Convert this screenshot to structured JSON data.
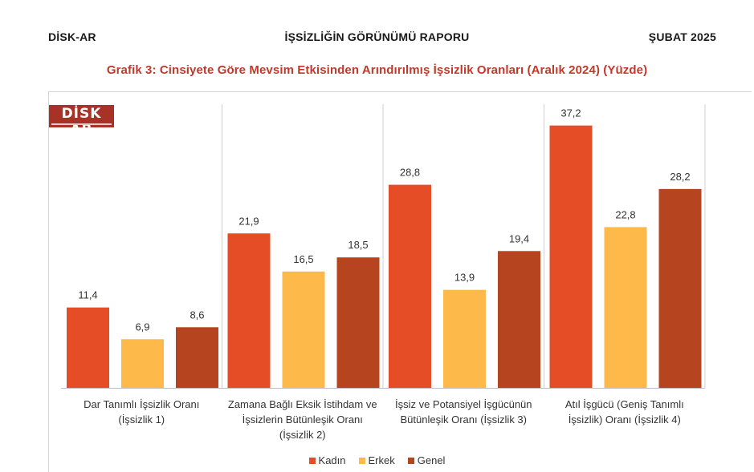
{
  "header": {
    "left": "DİSK-AR",
    "center": "İŞSİZLİĞİN GÖRÜNÜMÜ RAPORU",
    "right": "ŞUBAT 2025"
  },
  "logo": {
    "text": "DİSK AR"
  },
  "colors": {
    "kadin": "#e44d26",
    "erkek": "#fdb94a",
    "genel": "#b5441f",
    "title": "#c0392b"
  },
  "chart_data": {
    "type": "bar",
    "title": "Grafik 3: Cinsiyete Göre Mevsim Etkisinden Arındırılmış İşsizlik Oranları (Aralık 2024) (Yüzde)",
    "categories": [
      [
        "Dar Tanımlı İşsizlik Oranı",
        "(İşsizlik 1)"
      ],
      [
        "Zamana Bağlı Eksik İstihdam ve",
        "İşsizlerin Bütünleşik Oranı",
        "(İşsizlik 2)"
      ],
      [
        "İşsiz ve Potansiyel İşgücünün",
        "Bütünleşik Oranı (İşsizlik 3)"
      ],
      [
        "Atıl İşgücü (Geniş Tanımlı",
        "İşsizlik) Oranı (İşsizlik 4)"
      ]
    ],
    "series": [
      {
        "name": "Kadın",
        "values": [
          11.4,
          21.9,
          28.8,
          37.2
        ],
        "labels": [
          "11,4",
          "21,9",
          "28,8",
          "37,2"
        ]
      },
      {
        "name": "Erkek",
        "values": [
          6.9,
          16.5,
          13.9,
          22.8
        ],
        "labels": [
          "6,9",
          "16,5",
          "13,9",
          "22,8"
        ]
      },
      {
        "name": "Genel",
        "values": [
          8.6,
          18.5,
          19.4,
          28.2
        ],
        "labels": [
          "8,6",
          "18,5",
          "19,4",
          "28,2"
        ]
      }
    ],
    "xlabel": "",
    "ylabel": "",
    "ylim": [
      0,
      40
    ],
    "grid": false,
    "legend_position": "bottom"
  }
}
